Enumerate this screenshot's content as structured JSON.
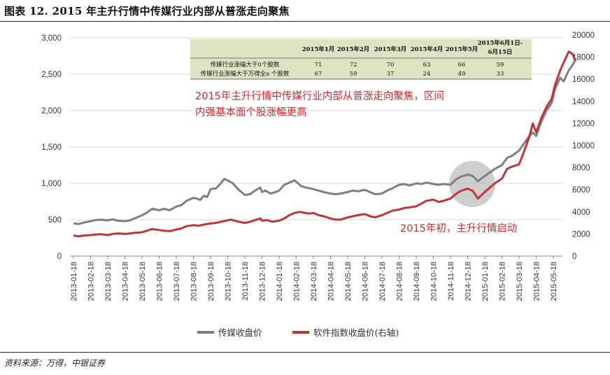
{
  "figure_title": "图表 12. 2015 年主升行情中传媒行业内部从普涨走向聚焦",
  "source_note": "资料来源：万得，中银证券",
  "colors": {
    "series_1": "#7f7f7f",
    "series_2": "#c0353a",
    "annotation": "#d7262d",
    "table_bg": "#dfe3c3"
  },
  "annotations": {
    "main_line1": "2015年主升行情中传媒行业内部从普涨走向聚焦，区间",
    "main_line2": "内强基本面个股涨幅更高",
    "start": "2015年初，主升行情启动"
  },
  "table": {
    "headers": [
      "",
      "2015年1月",
      "2015年2月",
      "2015年3月",
      "2015年4月",
      "2015年5月",
      "2015年6月1日-6月15日"
    ],
    "header_last_line1": "2015年6月1日-",
    "header_last_line2": "6月15日",
    "rows": [
      {
        "label": "传媒行业涨幅大于0个股数",
        "values": [
          "71",
          "72",
          "70",
          "63",
          "66",
          "59"
        ]
      },
      {
        "label": "传媒行业涨幅大于万得全a 个股数",
        "values": [
          "67",
          "59",
          "37",
          "24",
          "49",
          "33"
        ]
      }
    ]
  },
  "chart_data": {
    "type": "line",
    "x_ticks": [
      "2013-01-18",
      "2013-02-18",
      "2013-03-18",
      "2013-04-18",
      "2013-05-18",
      "2013-06-18",
      "2013-07-18",
      "2013-08-18",
      "2013-09-18",
      "2013-10-18",
      "2013-11-18",
      "2013-12-18",
      "2014-01-18",
      "2014-02-18",
      "2014-03-18",
      "2014-04-18",
      "2014-05-18",
      "2014-06-18",
      "2014-07-18",
      "2014-08-18",
      "2014-09-18",
      "2014-10-18",
      "2014-11-18",
      "2014-12-18",
      "2015-01-18",
      "2015-02-18",
      "2015-03-18",
      "2015-04-18",
      "2015-05-18"
    ],
    "y_left": {
      "min": 0,
      "max": 3000,
      "ticks": [
        "0",
        "500",
        "1,000",
        "1,500",
        "2,000",
        "2,500",
        "3,000"
      ]
    },
    "y_right": {
      "min": 0,
      "max": 20000,
      "ticks": [
        "0",
        "2000",
        "4000",
        "6000",
        "8000",
        "10000",
        "12000",
        "14000",
        "16000",
        "18000",
        "20000"
      ],
      "label": "右轴"
    },
    "legend_position": "bottom",
    "series": [
      {
        "name": "传媒收盘价",
        "axis": "left",
        "points": [
          [
            0,
            450
          ],
          [
            0.3,
            440
          ],
          [
            0.6,
            460
          ],
          [
            1,
            480
          ],
          [
            1.3,
            495
          ],
          [
            1.6,
            500
          ],
          [
            2,
            490
          ],
          [
            2.3,
            505
          ],
          [
            2.6,
            485
          ],
          [
            3,
            480
          ],
          [
            3.3,
            490
          ],
          [
            3.6,
            520
          ],
          [
            4,
            560
          ],
          [
            4.3,
            600
          ],
          [
            4.6,
            650
          ],
          [
            5,
            630
          ],
          [
            5.3,
            650
          ],
          [
            5.6,
            630
          ],
          [
            6,
            680
          ],
          [
            6.3,
            700
          ],
          [
            6.6,
            760
          ],
          [
            7,
            800
          ],
          [
            7.2,
            790
          ],
          [
            7.4,
            770
          ],
          [
            7.6,
            830
          ],
          [
            7.8,
            810
          ],
          [
            8,
            920
          ],
          [
            8.3,
            930
          ],
          [
            8.6,
            1000
          ],
          [
            8.8,
            1060
          ],
          [
            9,
            1040
          ],
          [
            9.3,
            1000
          ],
          [
            9.6,
            920
          ],
          [
            10,
            840
          ],
          [
            10.3,
            850
          ],
          [
            10.6,
            900
          ],
          [
            10.9,
            940
          ],
          [
            11,
            880
          ],
          [
            11.2,
            900
          ],
          [
            11.5,
            860
          ],
          [
            11.8,
            880
          ],
          [
            12,
            900
          ],
          [
            12.3,
            980
          ],
          [
            12.6,
            1010
          ],
          [
            12.9,
            1040
          ],
          [
            13,
            1020
          ],
          [
            13.3,
            960
          ],
          [
            13.6,
            940
          ],
          [
            14,
            920
          ],
          [
            14.3,
            900
          ],
          [
            14.6,
            880
          ],
          [
            15,
            860
          ],
          [
            15.3,
            850
          ],
          [
            15.6,
            860
          ],
          [
            16,
            880
          ],
          [
            16.3,
            900
          ],
          [
            16.6,
            890
          ],
          [
            17,
            910
          ],
          [
            17.3,
            880
          ],
          [
            17.6,
            850
          ],
          [
            18,
            860
          ],
          [
            18.3,
            900
          ],
          [
            18.6,
            930
          ],
          [
            19,
            980
          ],
          [
            19.3,
            990
          ],
          [
            19.6,
            970
          ],
          [
            20,
            1000
          ],
          [
            20.3,
            990
          ],
          [
            20.6,
            1010
          ],
          [
            21,
            990
          ],
          [
            21.3,
            980
          ],
          [
            21.6,
            990
          ],
          [
            22,
            980
          ],
          [
            22.3,
            1050
          ],
          [
            22.6,
            1090
          ],
          [
            23,
            1120
          ],
          [
            23.3,
            1100
          ],
          [
            23.6,
            1030
          ],
          [
            24,
            1100
          ],
          [
            24.3,
            1150
          ],
          [
            24.6,
            1200
          ],
          [
            25,
            1250
          ],
          [
            25.3,
            1350
          ],
          [
            25.6,
            1380
          ],
          [
            26,
            1450
          ],
          [
            26.3,
            1550
          ],
          [
            26.6,
            1650
          ],
          [
            26.8,
            1700
          ],
          [
            27,
            1650
          ],
          [
            27.3,
            1850
          ],
          [
            27.6,
            2000
          ],
          [
            27.9,
            2100
          ],
          [
            28.1,
            2300
          ],
          [
            28.4,
            2450
          ],
          [
            28.6,
            2400
          ],
          [
            28.9,
            2550
          ],
          [
            29.1,
            2620
          ],
          [
            29.3,
            2700
          ]
        ]
      },
      {
        "name": "软件指数收盘价(右轴)",
        "axis": "right",
        "points": [
          [
            0,
            1850
          ],
          [
            0.3,
            1800
          ],
          [
            0.6,
            1850
          ],
          [
            1,
            1900
          ],
          [
            1.3,
            1950
          ],
          [
            1.6,
            1980
          ],
          [
            2,
            1900
          ],
          [
            2.3,
            2000
          ],
          [
            2.6,
            2050
          ],
          [
            3,
            2000
          ],
          [
            3.3,
            2050
          ],
          [
            3.6,
            2100
          ],
          [
            4,
            2150
          ],
          [
            4.3,
            2300
          ],
          [
            4.6,
            2450
          ],
          [
            5,
            2350
          ],
          [
            5.3,
            2300
          ],
          [
            5.6,
            2250
          ],
          [
            6,
            2400
          ],
          [
            6.3,
            2500
          ],
          [
            6.6,
            2700
          ],
          [
            7,
            2800
          ],
          [
            7.3,
            2750
          ],
          [
            7.6,
            2850
          ],
          [
            8,
            2950
          ],
          [
            8.3,
            3000
          ],
          [
            8.6,
            3100
          ],
          [
            8.9,
            3200
          ],
          [
            9.2,
            3300
          ],
          [
            9.5,
            3150
          ],
          [
            10,
            3000
          ],
          [
            10.3,
            3100
          ],
          [
            10.6,
            3250
          ],
          [
            10.9,
            3400
          ],
          [
            11,
            3200
          ],
          [
            11.3,
            3250
          ],
          [
            11.6,
            3100
          ],
          [
            12,
            3200
          ],
          [
            12.3,
            3400
          ],
          [
            12.6,
            3700
          ],
          [
            12.9,
            3900
          ],
          [
            13.2,
            4000
          ],
          [
            13.5,
            3900
          ],
          [
            13.8,
            3850
          ],
          [
            14,
            3900
          ],
          [
            14.3,
            3700
          ],
          [
            14.6,
            3600
          ],
          [
            15,
            3400
          ],
          [
            15.3,
            3300
          ],
          [
            15.6,
            3300
          ],
          [
            16,
            3500
          ],
          [
            16.3,
            3600
          ],
          [
            16.6,
            3700
          ],
          [
            17,
            3800
          ],
          [
            17.3,
            3600
          ],
          [
            17.6,
            3500
          ],
          [
            18,
            3700
          ],
          [
            18.3,
            3900
          ],
          [
            18.6,
            4100
          ],
          [
            19,
            4200
          ],
          [
            19.3,
            4350
          ],
          [
            19.6,
            4400
          ],
          [
            20,
            4500
          ],
          [
            20.3,
            4750
          ],
          [
            20.6,
            5000
          ],
          [
            21,
            5100
          ],
          [
            21.3,
            4900
          ],
          [
            21.6,
            5000
          ],
          [
            22,
            5200
          ],
          [
            22.3,
            5600
          ],
          [
            22.6,
            5900
          ],
          [
            23,
            6100
          ],
          [
            23.3,
            5900
          ],
          [
            23.6,
            5200
          ],
          [
            24,
            5800
          ],
          [
            24.3,
            6200
          ],
          [
            24.6,
            6600
          ],
          [
            25,
            7000
          ],
          [
            25.3,
            7900
          ],
          [
            25.6,
            8100
          ],
          [
            26,
            8300
          ],
          [
            26.3,
            9500
          ],
          [
            26.6,
            10800
          ],
          [
            26.8,
            12000
          ],
          [
            27,
            11200
          ],
          [
            27.3,
            12500
          ],
          [
            27.6,
            13500
          ],
          [
            27.9,
            14200
          ],
          [
            28.1,
            15500
          ],
          [
            28.4,
            16800
          ],
          [
            28.6,
            17500
          ],
          [
            28.9,
            18500
          ],
          [
            29.1,
            18300
          ],
          [
            29.3,
            17700
          ]
        ]
      }
    ]
  }
}
